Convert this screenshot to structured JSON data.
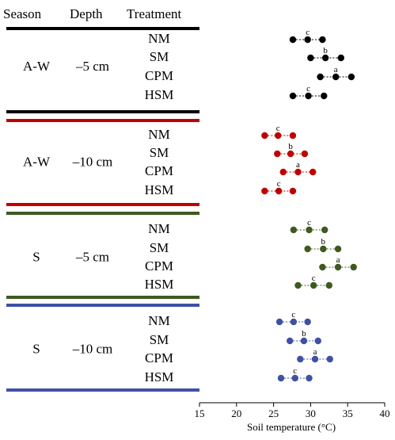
{
  "chart_data": {
    "type": "scatter",
    "headers": {
      "season": "Season",
      "depth": "Depth",
      "treatment": "Treatment"
    },
    "xlabel": "Soil temperature (°C)",
    "xlim": [
      15,
      40
    ],
    "xticks": [
      15,
      20,
      25,
      30,
      35,
      40
    ],
    "grid": false,
    "groups": [
      {
        "season": "A-W",
        "depth": "–5 cm",
        "color": "#000000",
        "rows": [
          {
            "treatment": "NM",
            "low": 27.6,
            "mean": 29.6,
            "high": 31.6,
            "letter": "c"
          },
          {
            "treatment": "SM",
            "low": 30.0,
            "mean": 32.0,
            "high": 34.1,
            "letter": "b"
          },
          {
            "treatment": "CPM",
            "low": 31.3,
            "mean": 33.4,
            "high": 35.5,
            "letter": "a"
          },
          {
            "treatment": "HSM",
            "low": 27.6,
            "mean": 29.7,
            "high": 31.8,
            "letter": "c"
          }
        ]
      },
      {
        "season": "A-W",
        "depth": "–10 cm",
        "color": "#c00000",
        "rows": [
          {
            "treatment": "NM",
            "low": 23.8,
            "mean": 25.6,
            "high": 27.6,
            "letter": "c"
          },
          {
            "treatment": "SM",
            "low": 25.5,
            "mean": 27.3,
            "high": 29.2,
            "letter": "b"
          },
          {
            "treatment": "CPM",
            "low": 26.3,
            "mean": 28.3,
            "high": 30.3,
            "letter": "a"
          },
          {
            "treatment": "HSM",
            "low": 23.8,
            "mean": 25.7,
            "high": 27.6,
            "letter": "c"
          }
        ]
      },
      {
        "season": "S",
        "depth": "–5 cm",
        "color": "#3d5a1f",
        "rows": [
          {
            "treatment": "NM",
            "low": 27.7,
            "mean": 29.8,
            "high": 31.9,
            "letter": "c"
          },
          {
            "treatment": "SM",
            "low": 29.6,
            "mean": 31.7,
            "high": 33.7,
            "letter": "b"
          },
          {
            "treatment": "CPM",
            "low": 31.6,
            "mean": 33.7,
            "high": 35.8,
            "letter": "a"
          },
          {
            "treatment": "HSM",
            "low": 28.3,
            "mean": 30.4,
            "high": 32.5,
            "letter": "c"
          }
        ]
      },
      {
        "season": "S",
        "depth": "–10 cm",
        "color": "#3f51a5",
        "rows": [
          {
            "treatment": "NM",
            "low": 25.8,
            "mean": 27.7,
            "high": 29.6,
            "letter": "c"
          },
          {
            "treatment": "SM",
            "low": 27.2,
            "mean": 29.1,
            "high": 31.0,
            "letter": "b"
          },
          {
            "treatment": "CPM",
            "low": 28.6,
            "mean": 30.6,
            "high": 32.6,
            "letter": "a"
          },
          {
            "treatment": "HSM",
            "low": 26.0,
            "mean": 27.9,
            "high": 29.8,
            "letter": "c"
          }
        ]
      }
    ]
  }
}
